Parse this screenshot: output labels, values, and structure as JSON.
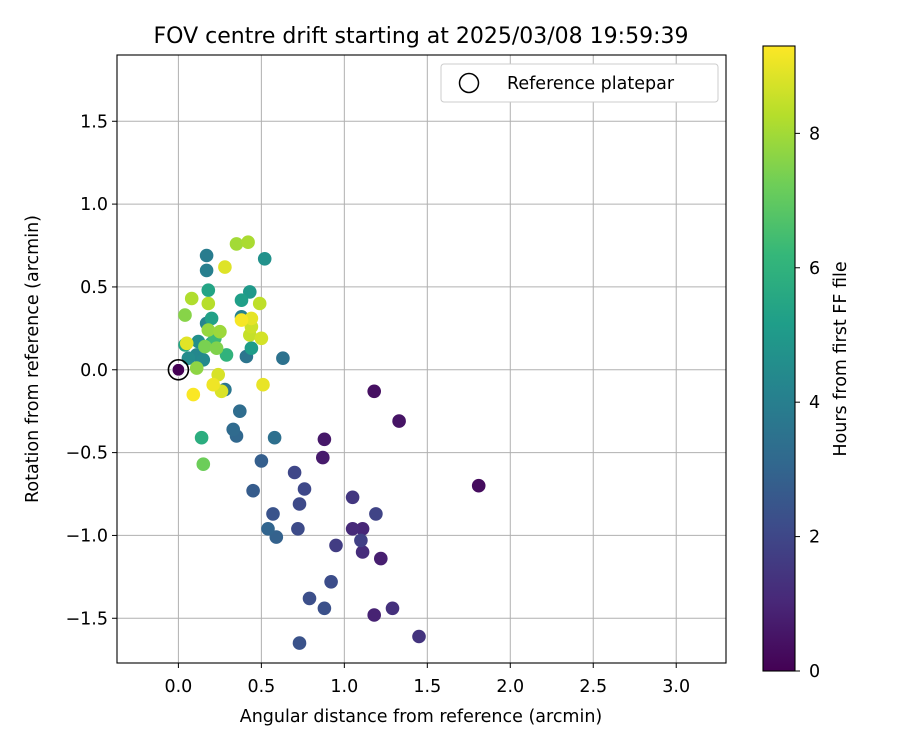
{
  "chart_data": {
    "type": "scatter",
    "title": "FOV centre drift starting at 2025/03/08 19:59:39",
    "xlabel": "Angular distance from reference (arcmin)",
    "ylabel": "Rotation from reference (arcmin)",
    "xlim": [
      -0.37,
      3.3
    ],
    "ylim": [
      -1.77,
      1.9
    ],
    "xticks": [
      "0.0",
      "0.5",
      "1.0",
      "1.5",
      "2.0",
      "2.5",
      "3.0"
    ],
    "xtick_values": [
      0.0,
      0.5,
      1.0,
      1.5,
      2.0,
      2.5,
      3.0
    ],
    "yticks": [
      "−1.5",
      "−1.0",
      "−0.5",
      "0.0",
      "0.5",
      "1.0",
      "1.5"
    ],
    "ytick_values": [
      -1.5,
      -1.0,
      -0.5,
      0.0,
      0.5,
      1.0,
      1.5
    ],
    "grid": true,
    "legend": {
      "position": "top-right",
      "label": "Reference platepar"
    },
    "reference_point": {
      "x": 0.0,
      "y": 0.0
    },
    "colormap": "viridis",
    "colorbar": {
      "label": "Hours from first FF file",
      "min": 0,
      "max": 9.3,
      "ticks": [
        "0",
        "2",
        "4",
        "6",
        "8"
      ],
      "tick_values": [
        0,
        2,
        4,
        6,
        8
      ],
      "colors": [
        "#440154",
        "#482878",
        "#3e4989",
        "#31688e",
        "#26828e",
        "#1f9e89",
        "#35b779",
        "#6ece58",
        "#b5de2b",
        "#fde725"
      ]
    },
    "points": [
      {
        "x": 1.81,
        "y": -0.7,
        "h": 0.3
      },
      {
        "x": 1.18,
        "y": -0.13,
        "h": 0.4
      },
      {
        "x": 1.33,
        "y": -0.31,
        "h": 0.5
      },
      {
        "x": 0.88,
        "y": -0.42,
        "h": 0.6
      },
      {
        "x": 0.87,
        "y": -0.53,
        "h": 0.7
      },
      {
        "x": 1.22,
        "y": -1.14,
        "h": 0.8
      },
      {
        "x": 1.18,
        "y": -1.48,
        "h": 0.9
      },
      {
        "x": 1.11,
        "y": -0.96,
        "h": 1.0
      },
      {
        "x": 1.05,
        "y": -0.96,
        "h": 1.1
      },
      {
        "x": 1.11,
        "y": -1.1,
        "h": 1.2
      },
      {
        "x": 1.29,
        "y": -1.44,
        "h": 1.3
      },
      {
        "x": 1.45,
        "y": -1.61,
        "h": 1.4
      },
      {
        "x": 1.05,
        "y": -0.77,
        "h": 1.5
      },
      {
        "x": 0.95,
        "y": -1.06,
        "h": 1.7
      },
      {
        "x": 1.1,
        "y": -1.03,
        "h": 1.8
      },
      {
        "x": 1.19,
        "y": -0.87,
        "h": 1.9
      },
      {
        "x": 0.7,
        "y": -0.62,
        "h": 2.0
      },
      {
        "x": 0.76,
        "y": -0.72,
        "h": 2.05
      },
      {
        "x": 0.73,
        "y": -0.81,
        "h": 2.1
      },
      {
        "x": 0.72,
        "y": -0.96,
        "h": 2.15
      },
      {
        "x": 0.92,
        "y": -1.28,
        "h": 2.2
      },
      {
        "x": 0.79,
        "y": -1.38,
        "h": 2.25
      },
      {
        "x": 0.88,
        "y": -1.44,
        "h": 2.3
      },
      {
        "x": 0.73,
        "y": -1.65,
        "h": 2.35
      },
      {
        "x": 0.57,
        "y": -0.87,
        "h": 2.4
      },
      {
        "x": 0.45,
        "y": -0.73,
        "h": 2.7
      },
      {
        "x": 0.5,
        "y": -0.55,
        "h": 2.8
      },
      {
        "x": 0.59,
        "y": -1.01,
        "h": 2.9
      },
      {
        "x": 0.54,
        "y": -0.96,
        "h": 3.0
      },
      {
        "x": 0.35,
        "y": -0.4,
        "h": 3.1
      },
      {
        "x": 0.33,
        "y": -0.36,
        "h": 3.2
      },
      {
        "x": 0.37,
        "y": -0.25,
        "h": 3.3
      },
      {
        "x": 0.58,
        "y": -0.41,
        "h": 3.4
      },
      {
        "x": 0.63,
        "y": 0.07,
        "h": 3.5
      },
      {
        "x": 0.41,
        "y": 0.08,
        "h": 3.6
      },
      {
        "x": 0.28,
        "y": -0.12,
        "h": 3.7
      },
      {
        "x": 0.17,
        "y": 0.69,
        "h": 3.9
      },
      {
        "x": 0.17,
        "y": 0.6,
        "h": 4.0
      },
      {
        "x": 0.38,
        "y": 0.32,
        "h": 4.1
      },
      {
        "x": 0.17,
        "y": 0.28,
        "h": 4.2
      },
      {
        "x": 0.11,
        "y": 0.09,
        "h": 4.3
      },
      {
        "x": 0.15,
        "y": 0.06,
        "h": 4.4
      },
      {
        "x": 0.06,
        "y": 0.07,
        "h": 4.5
      },
      {
        "x": 0.12,
        "y": 0.17,
        "h": 4.6
      },
      {
        "x": 0.52,
        "y": 0.67,
        "h": 4.7
      },
      {
        "x": 0.43,
        "y": 0.47,
        "h": 5.0
      },
      {
        "x": 0.44,
        "y": 0.13,
        "h": 5.1
      },
      {
        "x": 0.38,
        "y": 0.42,
        "h": 5.2
      },
      {
        "x": 0.2,
        "y": 0.31,
        "h": 5.3
      },
      {
        "x": 0.18,
        "y": 0.48,
        "h": 5.4
      },
      {
        "x": 0.04,
        "y": 0.15,
        "h": 5.5
      },
      {
        "x": 0.2,
        "y": 0.16,
        "h": 5.6
      },
      {
        "x": 0.14,
        "y": -0.41,
        "h": 5.8
      },
      {
        "x": 0.29,
        "y": 0.09,
        "h": 6.0
      },
      {
        "x": 0.22,
        "y": 0.19,
        "h": 6.3
      },
      {
        "x": 0.15,
        "y": -0.57,
        "h": 7.2
      },
      {
        "x": 0.16,
        "y": 0.14,
        "h": 7.4
      },
      {
        "x": 0.23,
        "y": 0.13,
        "h": 7.5
      },
      {
        "x": 0.04,
        "y": 0.33,
        "h": 7.6
      },
      {
        "x": 0.11,
        "y": 0.01,
        "h": 7.7
      },
      {
        "x": 0.18,
        "y": 0.24,
        "h": 7.8
      },
      {
        "x": 0.25,
        "y": 0.23,
        "h": 7.9
      },
      {
        "x": 0.35,
        "y": 0.76,
        "h": 8.0
      },
      {
        "x": 0.42,
        "y": 0.77,
        "h": 8.1
      },
      {
        "x": 0.08,
        "y": 0.43,
        "h": 8.2
      },
      {
        "x": 0.18,
        "y": 0.4,
        "h": 8.3
      },
      {
        "x": 0.49,
        "y": 0.4,
        "h": 8.4
      },
      {
        "x": 0.43,
        "y": 0.21,
        "h": 8.5
      },
      {
        "x": 0.44,
        "y": 0.26,
        "h": 8.6
      },
      {
        "x": 0.5,
        "y": 0.19,
        "h": 8.7
      },
      {
        "x": 0.24,
        "y": -0.03,
        "h": 8.75
      },
      {
        "x": 0.26,
        "y": -0.13,
        "h": 8.8
      },
      {
        "x": 0.28,
        "y": 0.62,
        "h": 8.85
      },
      {
        "x": 0.05,
        "y": 0.16,
        "h": 8.9
      },
      {
        "x": 0.44,
        "y": 0.31,
        "h": 8.95
      },
      {
        "x": 0.51,
        "y": -0.09,
        "h": 9.0
      },
      {
        "x": 0.21,
        "y": -0.09,
        "h": 9.1
      },
      {
        "x": 0.38,
        "y": 0.3,
        "h": 9.2
      },
      {
        "x": 0.09,
        "y": -0.15,
        "h": 9.25
      }
    ]
  }
}
